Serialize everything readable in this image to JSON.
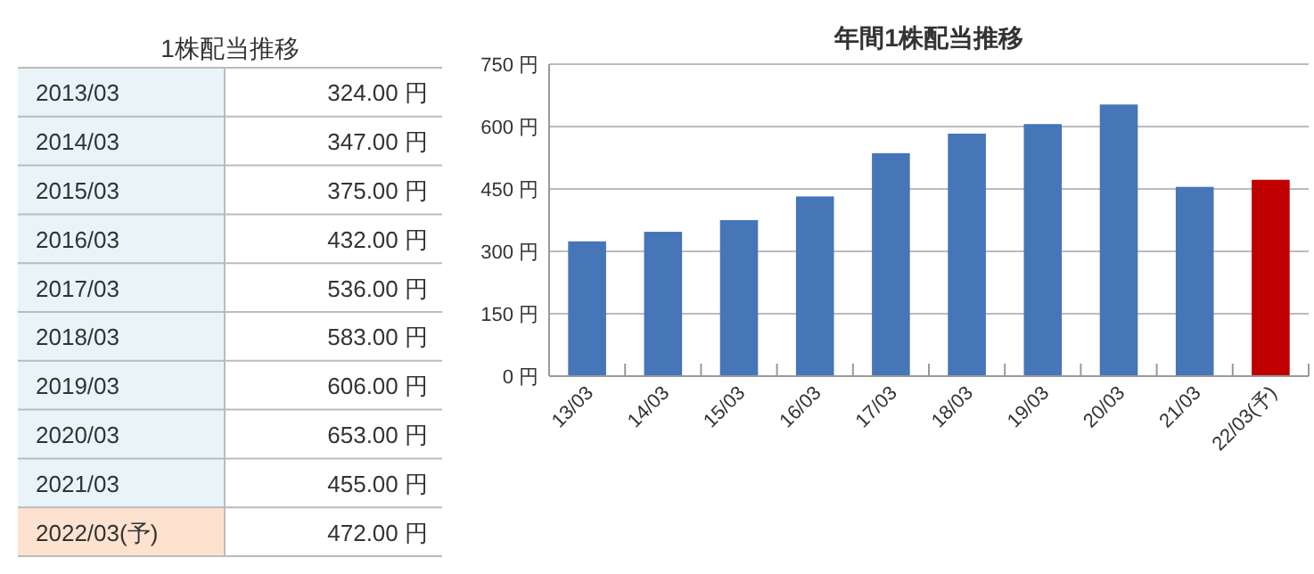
{
  "chart_data": [
    {
      "type": "other",
      "title": "1株配当推移",
      "categories": [
        "2013/03",
        "2014/03",
        "2015/03",
        "2016/03",
        "2017/03",
        "2018/03",
        "2019/03",
        "2020/03",
        "2021/03",
        "2022/03(予)"
      ],
      "value_labels": [
        "324.00 円",
        "347.00 円",
        "375.00 円",
        "432.00 円",
        "536.00 円",
        "583.00 円",
        "606.00 円",
        "653.00 円",
        "455.00 円",
        "472.00 円"
      ],
      "colors": [
        "#e8f4f8",
        "#e8f4f8",
        "#e8f4f8",
        "#e8f4f8",
        "#e8f4f8",
        "#e8f4f8",
        "#e8f4f8",
        "#e8f4f8",
        "#e8f4f8",
        "#fde3cf"
      ]
    },
    {
      "type": "bar",
      "title": "年間1株配当推移",
      "categories": [
        "13/03",
        "14/03",
        "15/03",
        "16/03",
        "17/03",
        "18/03",
        "19/03",
        "20/03",
        "21/03",
        "22/03(予)"
      ],
      "values": [
        324,
        347,
        375,
        432,
        536,
        583,
        606,
        653,
        455,
        472
      ],
      "colors": [
        "#4675b8",
        "#4675b8",
        "#4675b8",
        "#4675b8",
        "#4675b8",
        "#4675b8",
        "#4675b8",
        "#4675b8",
        "#4675b8",
        "#c00000"
      ],
      "ylim": [
        0,
        750
      ],
      "yticks": [
        {
          "value": 0,
          "label": "0 円"
        },
        {
          "value": 150,
          "label": "150 円"
        },
        {
          "value": 300,
          "label": "300 円"
        },
        {
          "value": 450,
          "label": "450 円"
        },
        {
          "value": 600,
          "label": "600 円"
        },
        {
          "value": 750,
          "label": "750 円"
        }
      ],
      "grid": "y"
    }
  ]
}
